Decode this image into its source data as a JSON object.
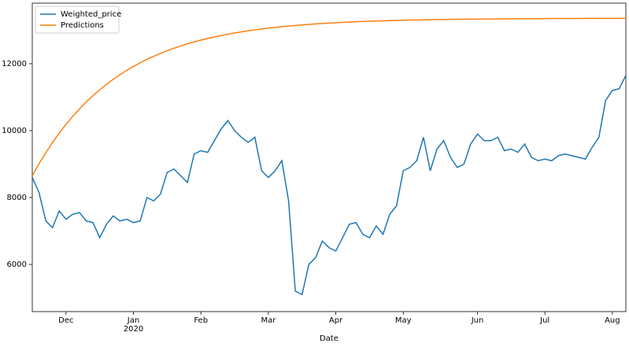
{
  "chart_data": {
    "type": "line",
    "xlabel": "Date",
    "x_year_label": "2020",
    "categories": [
      null,
      null,
      null,
      null,
      null,
      "Dec",
      null,
      null,
      null,
      null,
      null,
      null,
      null,
      null,
      null,
      "Jan",
      null,
      null,
      null,
      null,
      null,
      null,
      null,
      null,
      null,
      "Feb",
      null,
      null,
      null,
      null,
      null,
      null,
      null,
      null,
      null,
      "Mar",
      null,
      null,
      null,
      null,
      null,
      null,
      null,
      null,
      null,
      "Apr",
      null,
      null,
      null,
      null,
      null,
      null,
      null,
      null,
      null,
      "May",
      null,
      null,
      null,
      null,
      null,
      null,
      null,
      null,
      null,
      null,
      "Jun",
      null,
      null,
      null,
      null,
      null,
      null,
      null,
      null,
      null,
      "Jul",
      null,
      null,
      null,
      null,
      null,
      null,
      null,
      null,
      null,
      "Aug",
      null,
      null
    ],
    "series": [
      {
        "name": "Weighted_price",
        "color": "#1f77b4",
        "values": [
          8600,
          8150,
          7300,
          7100,
          7600,
          7350,
          7500,
          7550,
          7300,
          7250,
          6800,
          7200,
          7450,
          7300,
          7350,
          7250,
          7300,
          8000,
          7900,
          8100,
          8750,
          8850,
          8650,
          8450,
          9300,
          9400,
          9350,
          9700,
          10050,
          10300,
          10000,
          9800,
          9650,
          9800,
          8800,
          8600,
          8800,
          9100,
          7900,
          5200,
          5100,
          6000,
          6200,
          6700,
          6500,
          6400,
          6800,
          7200,
          7250,
          6900,
          6800,
          7150,
          6900,
          7500,
          7750,
          8800,
          8900,
          9100,
          9800,
          8800,
          9450,
          9700,
          9200,
          8900,
          9000,
          9600,
          9900,
          9700,
          9700,
          9800,
          9400,
          9450,
          9350,
          9600,
          9200,
          9100,
          9150,
          9100,
          9250,
          9300,
          9250,
          9200,
          9150,
          9500,
          9800,
          10900,
          11200,
          11250,
          11650
        ]
      },
      {
        "name": "Predictions",
        "color": "#ff7f0e",
        "values": [
          8650,
          9008,
          9338,
          9643,
          9925,
          10186,
          10427,
          10649,
          10855,
          11045,
          11221,
          11383,
          11533,
          11672,
          11800,
          11918,
          12028,
          12129,
          12222,
          12309,
          12388,
          12462,
          12530,
          12593,
          12651,
          12705,
          12755,
          12801,
          12843,
          12882,
          12919,
          12952,
          12983,
          13012,
          13038,
          13063,
          13085,
          13106,
          13125,
          13143,
          13160,
          13175,
          13189,
          13202,
          13214,
          13225,
          13235,
          13245,
          13254,
          13262,
          13269,
          13276,
          13282,
          13288,
          13294,
          13299,
          13303,
          13308,
          13312,
          13315,
          13319,
          13322,
          13325,
          13327,
          13330,
          13332,
          13334,
          13336,
          13338,
          13340,
          13341,
          13343,
          13344,
          13345,
          13346,
          13347,
          13348,
          13349,
          13350,
          13351,
          13352,
          13352,
          13353,
          13354,
          13354,
          13355,
          13355,
          13355,
          13356
        ]
      }
    ],
    "ylim": [
      4590,
      13810
    ],
    "yticks": [
      6000,
      8000,
      10000,
      12000
    ],
    "grid": false,
    "legend": "upper left"
  }
}
